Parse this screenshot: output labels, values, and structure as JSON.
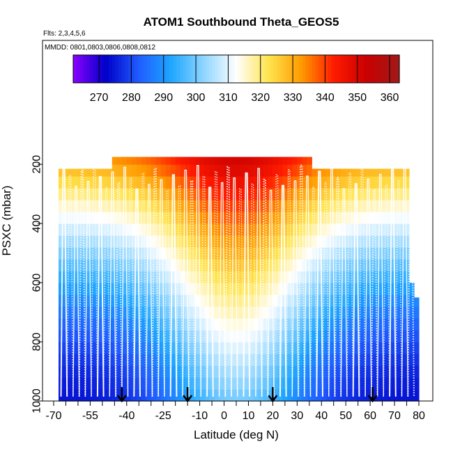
{
  "chart_data": {
    "type": "heatmap",
    "title": "ATOM1 Southbound Theta_GEOS5",
    "annotations": {
      "flights": "Flts: 2,3,4,5,6",
      "dates": "MMDD: 0801,0803,0806,0808,0812"
    },
    "xlabel": "Latitude (deg N)",
    "ylabel": "PSXC (mbar)",
    "xlim": [
      -70,
      80
    ],
    "ylim": [
      1000,
      100
    ],
    "x_ticks": [
      -70,
      -55,
      -40,
      -25,
      -10,
      0,
      10,
      20,
      30,
      40,
      50,
      60,
      70,
      80
    ],
    "x_minor_ticks": [
      -65,
      -60,
      -50,
      -45,
      -35,
      -30,
      -20,
      -15,
      -5,
      5,
      15,
      25,
      35,
      45,
      55,
      65,
      75
    ],
    "y_ticks": [
      200,
      400,
      600,
      800,
      1000
    ],
    "colorbar": {
      "min": 262,
      "max": 363,
      "ticks": [
        270,
        280,
        290,
        300,
        310,
        320,
        330,
        340,
        350,
        360
      ],
      "colors": [
        "#8b00ff",
        "#0000c8",
        "#1f5bff",
        "#1ea6ff",
        "#8ed5ff",
        "#ffffff",
        "#ffe44d",
        "#ff9a00",
        "#ff1a00",
        "#c80000",
        "#a01a1a"
      ]
    },
    "profile_model": {
      "surface_theta_tropics": 300,
      "surface_theta_poles": 274,
      "tropopause_theta_tropics": 350,
      "tropopause_theta_midlat": 330
    },
    "flight_tracks_count": 58,
    "arrow_latitudes": [
      -42,
      -15,
      20,
      61
    ]
  }
}
